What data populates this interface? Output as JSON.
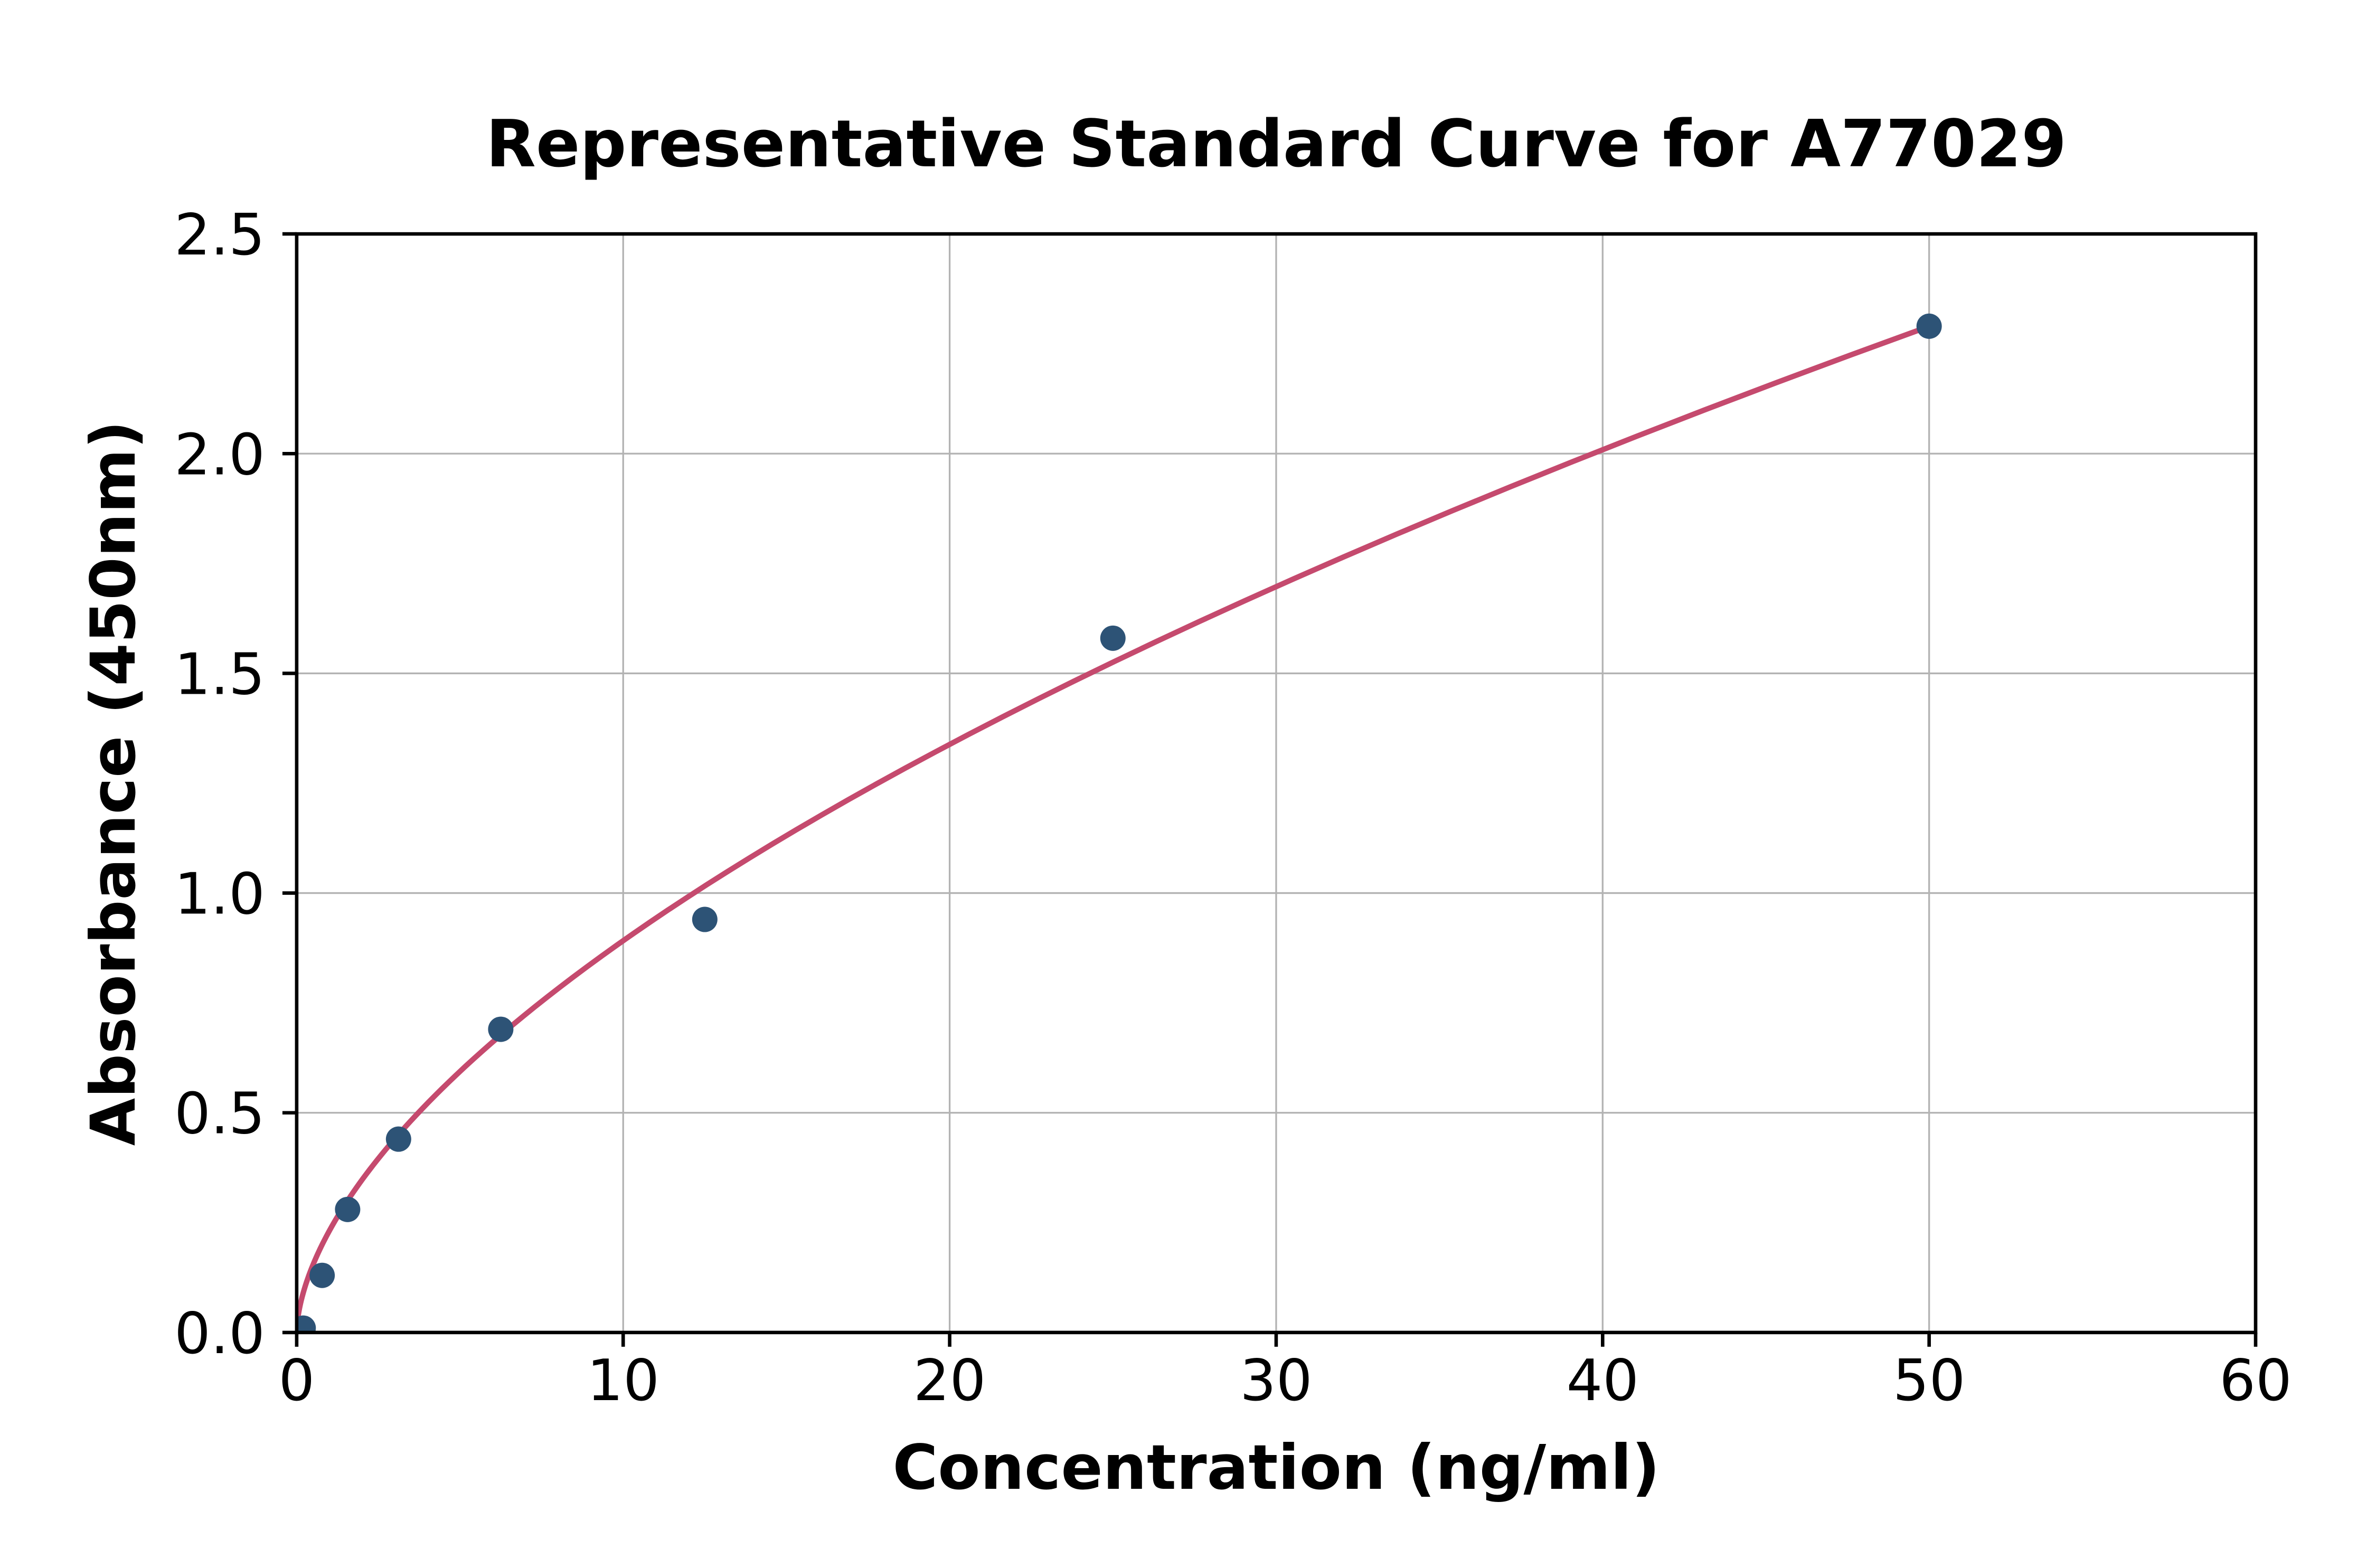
{
  "figure": {
    "background": "#ffffff"
  },
  "chart_data": {
    "type": "scatter",
    "title": "Representative Standard Curve for A77029",
    "xlabel": "Concentration (ng/ml)",
    "ylabel": "Absorbance (450nm)",
    "xlim": [
      0,
      60
    ],
    "ylim": [
      0,
      2.5
    ],
    "grid": true,
    "legend": "none",
    "xticks": [
      {
        "v": 0,
        "label": "0"
      },
      {
        "v": 10,
        "label": "10"
      },
      {
        "v": 20,
        "label": "20"
      },
      {
        "v": 30,
        "label": "30"
      },
      {
        "v": 40,
        "label": "40"
      },
      {
        "v": 50,
        "label": "50"
      },
      {
        "v": 60,
        "label": "60"
      }
    ],
    "yticks": [
      {
        "v": 0.0,
        "label": "0.0"
      },
      {
        "v": 0.5,
        "label": "0.5"
      },
      {
        "v": 1.0,
        "label": "1.0"
      },
      {
        "v": 1.5,
        "label": "1.5"
      },
      {
        "v": 2.0,
        "label": "2.0"
      },
      {
        "v": 2.5,
        "label": "2.5"
      }
    ],
    "points": [
      {
        "x": 0.2,
        "y": 0.01
      },
      {
        "x": 0.78,
        "y": 0.13
      },
      {
        "x": 1.56,
        "y": 0.28
      },
      {
        "x": 3.12,
        "y": 0.44
      },
      {
        "x": 6.25,
        "y": 0.69
      },
      {
        "x": 12.5,
        "y": 0.94
      },
      {
        "x": 25,
        "y": 1.58
      },
      {
        "x": 50,
        "y": 2.29
      }
    ],
    "fit_curve": {
      "model": "power",
      "a": 0.2313,
      "b": 0.586,
      "x_start": 0.05,
      "x_end": 50
    },
    "colors": {
      "marker": "#2D5376",
      "curve": "#C54A6E",
      "grid": "#B3B3B3",
      "axis": "#000000",
      "text": "#000000"
    }
  }
}
